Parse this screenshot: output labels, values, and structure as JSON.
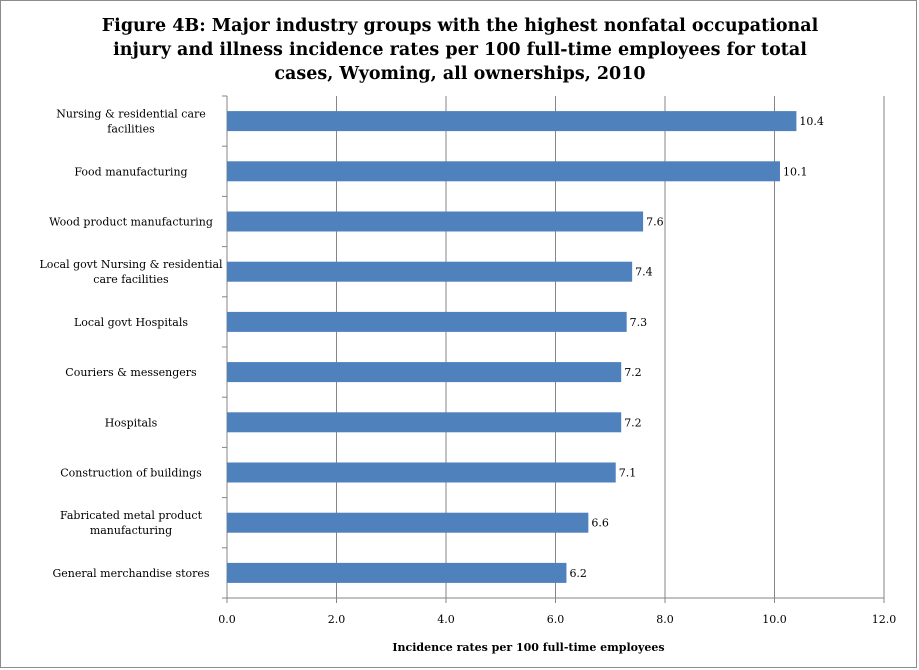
{
  "chart_data": {
    "type": "bar",
    "orientation": "horizontal",
    "title": "Figure 4B: Major industry groups with the highest nonfatal occupational\ninjury and illness incidence rates per 100 full-time employees for total\ncases, Wyoming, all ownerships, 2010",
    "xlabel": "Incidence rates per 100 full-time employees",
    "ylabel": "",
    "categories": [
      "Nursing & residential care facilities",
      "Food manufacturing",
      "Wood product manufacturing",
      "Local govt Nursing & residential care facilities",
      "Local govt Hospitals",
      "Couriers & messengers",
      "Hospitals",
      "Construction of buildings",
      "Fabricated metal product manufacturing",
      "General merchandise stores"
    ],
    "category_lines": [
      [
        "Nursing & residential care",
        "facilities"
      ],
      [
        "Food manufacturing"
      ],
      [
        "Wood product manufacturing"
      ],
      [
        "Local govt Nursing & residential",
        "care facilities"
      ],
      [
        "Local govt Hospitals"
      ],
      [
        "Couriers & messengers"
      ],
      [
        "Hospitals"
      ],
      [
        "Construction of buildings"
      ],
      [
        "Fabricated metal product",
        "manufacturing"
      ],
      [
        "General merchandise stores"
      ]
    ],
    "values": [
      10.4,
      10.1,
      7.6,
      7.4,
      7.3,
      7.2,
      7.2,
      7.1,
      6.6,
      6.2
    ],
    "data_labels": [
      "10.4",
      "10.1",
      "7.6",
      "7.4",
      "7.3",
      "7.2",
      "7.2",
      "7.1",
      "6.6",
      "6.2"
    ],
    "xlim": [
      0,
      12
    ],
    "xticks": [
      0,
      2,
      4,
      6,
      8,
      10,
      12
    ],
    "xtick_labels": [
      "0.0",
      "2.0",
      "4.0",
      "6.0",
      "8.0",
      "10.0",
      "12.0"
    ],
    "grid": "vertical",
    "legend": "none",
    "bar_color": "#4f81bd",
    "grid_color": "#868686"
  }
}
